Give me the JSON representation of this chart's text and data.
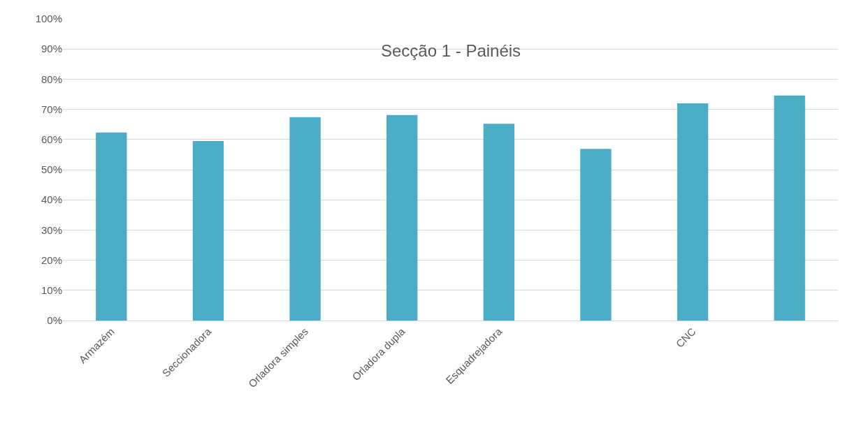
{
  "chart_data": {
    "type": "bar",
    "title": "Secção 1 - Painéis",
    "categories": [
      "Armazém",
      "Seccionadora",
      "Orladora simples",
      "Orladora dupla",
      "Esquadrejadora",
      null,
      "CNC",
      null
    ],
    "values": [
      62.3,
      59.5,
      67.4,
      68.1,
      65.2,
      56.9,
      72.0,
      74.6
    ],
    "color": "#4bacc6",
    "ylim": [
      0,
      100
    ],
    "yticks": [
      {
        "value": 0,
        "label": "0%"
      },
      {
        "value": 10,
        "label": "10%"
      },
      {
        "value": 20,
        "label": "20%"
      },
      {
        "value": 30,
        "label": "30%"
      },
      {
        "value": 40,
        "label": "40%"
      },
      {
        "value": 50,
        "label": "50%"
      },
      {
        "value": 60,
        "label": "60%"
      },
      {
        "value": 70,
        "label": "70%"
      },
      {
        "value": 80,
        "label": "80%"
      },
      {
        "value": 90,
        "label": "90%"
      },
      {
        "value": 100,
        "label": "100%"
      }
    ],
    "grid": "y"
  }
}
